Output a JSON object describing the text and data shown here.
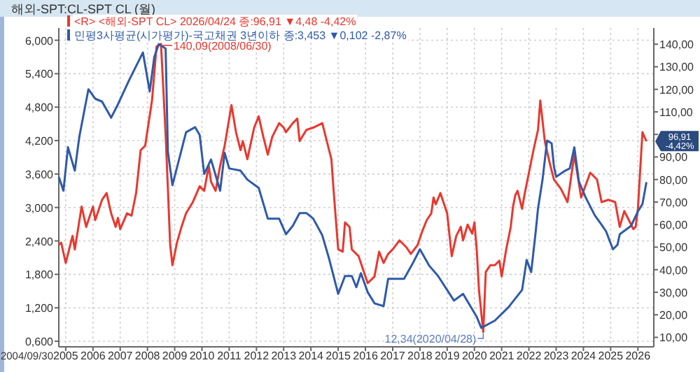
{
  "chart_data": {
    "type": "line",
    "title": "해외-SPT:CL-SPT CL (월)",
    "xlim": [
      "2004-09-30",
      "2026-08"
    ],
    "xticks": [
      {
        "value": "2005",
        "label": "2005"
      },
      {
        "value": "2006",
        "label": "2006"
      },
      {
        "value": "2007",
        "label": "2007"
      },
      {
        "value": "2008",
        "label": "2008"
      },
      {
        "value": "2009",
        "label": "2009"
      },
      {
        "value": "2010",
        "label": "2010"
      },
      {
        "value": "2011",
        "label": "2011"
      },
      {
        "value": "2012",
        "label": "2012"
      },
      {
        "value": "2013",
        "label": "2013"
      },
      {
        "value": "2014",
        "label": "2014"
      },
      {
        "value": "2015",
        "label": "2015"
      },
      {
        "value": "2016",
        "label": "2016"
      },
      {
        "value": "2017",
        "label": "2017"
      },
      {
        "value": "2018",
        "label": "2018"
      },
      {
        "value": "2019",
        "label": "2019"
      },
      {
        "value": "2020",
        "label": "2020"
      },
      {
        "value": "2021",
        "label": "2021"
      },
      {
        "value": "2022",
        "label": "2022"
      },
      {
        "value": "2023",
        "label": "2023"
      },
      {
        "value": "2024",
        "label": "2024"
      },
      {
        "value": "2025",
        "label": "2025"
      },
      {
        "value": "2026",
        "label": "2026"
      }
    ],
    "ylim": [
      0.5,
      6.22
    ],
    "yticks": [
      {
        "value": 0.6,
        "label": "0,600"
      },
      {
        "value": 1.2,
        "label": "1,200"
      },
      {
        "value": 1.8,
        "label": "1,800"
      },
      {
        "value": 2.4,
        "label": "2,400"
      },
      {
        "value": 3.0,
        "label": "3,000"
      },
      {
        "value": 3.6,
        "label": "3,600"
      },
      {
        "value": 4.2,
        "label": "4,200"
      },
      {
        "value": 4.8,
        "label": "4,800"
      },
      {
        "value": 5.4,
        "label": "5,400"
      },
      {
        "value": 6.0,
        "label": "6,000"
      }
    ],
    "y2lim": [
      5.8,
      147.2
    ],
    "y2ticks": [
      {
        "value": 10,
        "label": "10,00"
      },
      {
        "value": 20,
        "label": "20,00"
      },
      {
        "value": 30,
        "label": "30,00"
      },
      {
        "value": 40,
        "label": "40,00"
      },
      {
        "value": 50,
        "label": "50,00"
      },
      {
        "value": 60,
        "label": "60,00"
      },
      {
        "value": 70,
        "label": "70,00"
      },
      {
        "value": 80,
        "label": "80,00"
      },
      {
        "value": 90,
        "label": "90,00"
      },
      {
        "value": 100,
        "label": null
      },
      {
        "value": 110,
        "label": "110,00"
      },
      {
        "value": 120,
        "label": "120,00"
      },
      {
        "value": 130,
        "label": "130,00"
      },
      {
        "value": 140,
        "label": "140,00"
      }
    ],
    "grid": true,
    "legend": "top left",
    "series": [
      {
        "name": "<R> <해외-SPT CL> 2026/04/24 종:96,91  ▼4,48  -4,42%",
        "color": "#e8382f",
        "axis": "y2",
        "x": [
          "2004-09-30",
          "2004-11",
          "2005-01",
          "2005-04",
          "2005-05",
          "2005-08",
          "2005-10",
          "2006-01",
          "2006-02",
          "2006-05",
          "2006-07",
          "2006-09",
          "2006-11",
          "2006-12",
          "2007-01",
          "2007-04",
          "2007-06",
          "2007-08",
          "2007-10",
          "2007-12",
          "2008-03",
          "2008-05",
          "2008-06-30",
          "2008-08",
          "2008-09",
          "2008-10",
          "2008-11",
          "2008-12",
          "2009-02",
          "2009-04",
          "2009-06",
          "2009-09",
          "2009-12",
          "2010-02",
          "2010-04",
          "2010-05",
          "2010-07",
          "2010-09",
          "2010-11",
          "2011-02",
          "2011-04",
          "2011-06",
          "2011-07",
          "2011-09",
          "2011-12",
          "2012-02",
          "2012-04",
          "2012-06",
          "2012-08",
          "2012-11",
          "2013-01",
          "2013-02",
          "2013-05",
          "2013-07",
          "2013-08",
          "2013-11",
          "2014-02",
          "2014-06",
          "2014-08",
          "2014-10",
          "2014-11",
          "2015-01",
          "2015-03",
          "2015-04",
          "2015-06",
          "2015-07",
          "2015-10",
          "2015-12",
          "2016-02",
          "2016-05",
          "2016-07",
          "2016-09",
          "2016-11",
          "2017-01",
          "2017-04",
          "2017-07",
          "2017-09",
          "2017-12",
          "2018-02",
          "2018-04",
          "2018-06",
          "2018-07",
          "2018-08",
          "2018-10",
          "2018-11",
          "2019-01",
          "2019-03",
          "2019-05",
          "2019-07",
          "2019-08",
          "2019-10",
          "2019-12",
          "2020-01",
          "2020-02",
          "2020-03",
          "2020-04-28",
          "2020-06",
          "2020-08",
          "2020-10",
          "2020-12",
          "2021-01",
          "2021-03",
          "2021-05",
          "2021-06",
          "2021-07",
          "2021-08",
          "2021-10",
          "2021-11",
          "2022-01",
          "2022-03",
          "2022-05",
          "2022-06",
          "2022-08",
          "2022-10",
          "2022-12",
          "2023-03",
          "2023-06",
          "2023-09",
          "2023-12",
          "2024-04",
          "2024-07",
          "2024-09",
          "2024-12",
          "2025-03",
          "2025-05",
          "2025-07",
          "2025-09",
          "2025-11",
          "2025-12",
          "2026-01",
          "2026-03",
          "2026-04-24"
        ],
        "values": [
          51,
          52,
          43,
          55,
          49,
          68,
          59,
          68,
          62,
          71,
          74,
          65,
          59,
          63,
          58,
          65,
          64,
          74,
          93,
          95,
          115,
          139,
          140.09,
          120,
          100,
          76,
          51,
          42,
          52,
          59,
          65,
          70,
          77,
          75,
          86,
          79,
          75,
          86,
          95,
          113,
          101,
          93,
          97,
          89,
          103,
          108,
          99,
          91,
          99,
          105,
          103,
          101,
          105,
          107,
          97,
          102,
          103,
          105,
          97,
          89,
          75,
          49,
          48,
          61,
          59,
          49,
          46,
          40,
          34,
          37,
          48,
          43,
          47,
          49,
          53,
          50,
          47,
          51,
          57,
          62,
          65,
          72,
          69,
          74,
          71,
          65,
          46,
          55,
          59,
          53,
          60,
          56,
          61,
          49,
          31,
          12.34,
          39,
          42,
          42,
          44,
          37,
          49,
          59,
          68,
          73,
          75,
          67,
          73,
          83,
          93,
          102,
          115,
          97,
          88,
          80,
          76,
          70,
          91,
          72,
          83,
          80,
          70,
          71,
          70,
          59,
          66,
          62,
          58,
          59,
          67,
          101,
          96.91
        ]
      },
      {
        "name": "민평3사평균(시가평가)-국고채권 3년이하 종:3,453  ▼0,102  -2,87%",
        "color": "#2f5aa8",
        "x": [
          "2004-09-30",
          "2004-12",
          "2005-02",
          "2005-05",
          "2005-07",
          "2005-11",
          "2006-02",
          "2006-05",
          "2006-09",
          "2006-12",
          "2007-05",
          "2007-11",
          "2008-02",
          "2008-04",
          "2008-06",
          "2008-09",
          "2008-10",
          "2008-12",
          "2009-06",
          "2009-10",
          "2009-12",
          "2010-02",
          "2010-05",
          "2010-09",
          "2010-11",
          "2011-01",
          "2011-06",
          "2011-09",
          "2012-02",
          "2012-06",
          "2012-11",
          "2013-02",
          "2013-05",
          "2013-08",
          "2013-11",
          "2014-02",
          "2014-06",
          "2014-09",
          "2015-01",
          "2015-04",
          "2015-07",
          "2015-09",
          "2015-11",
          "2016-02",
          "2016-05",
          "2016-09",
          "2016-11",
          "2017-06",
          "2017-10",
          "2018-01",
          "2018-05",
          "2018-09",
          "2019-04",
          "2019-08",
          "2020-02",
          "2020-04",
          "2020-10",
          "2021-04",
          "2021-10",
          "2021-12",
          "2022-02",
          "2022-04",
          "2022-05",
          "2022-07",
          "2022-09",
          "2022-11",
          "2022-12",
          "2023-01",
          "2023-05",
          "2023-07",
          "2023-09",
          "2023-11",
          "2024-02",
          "2024-06",
          "2024-09",
          "2024-11",
          "2025-02",
          "2025-04",
          "2025-05",
          "2025-10",
          "2026-01",
          "2026-03",
          "2026-04-24"
        ],
        "values": [
          3.55,
          3.3,
          4.08,
          3.66,
          4.27,
          5.12,
          4.95,
          4.9,
          4.61,
          4.85,
          5.29,
          5.78,
          5.08,
          5.7,
          5.93,
          5.85,
          4.0,
          3.4,
          4.35,
          4.44,
          4.3,
          3.6,
          3.86,
          3.3,
          3.98,
          3.7,
          3.66,
          3.5,
          3.35,
          2.8,
          2.8,
          2.52,
          2.67,
          2.9,
          2.9,
          2.8,
          2.5,
          2.08,
          1.45,
          1.77,
          1.77,
          1.57,
          1.82,
          1.48,
          1.28,
          1.23,
          1.72,
          1.72,
          2.01,
          2.25,
          1.96,
          1.77,
          1.33,
          1.45,
          1.04,
          0.84,
          0.97,
          1.21,
          1.52,
          2.06,
          1.84,
          2.57,
          2.98,
          3.5,
          4.2,
          4.15,
          3.74,
          3.55,
          3.66,
          3.7,
          4.08,
          3.47,
          3.18,
          2.86,
          2.69,
          2.57,
          2.25,
          2.33,
          2.52,
          2.67,
          2.93,
          3.06,
          3.453
        ]
      }
    ],
    "annotations": [
      "140,09(2008/06/30)",
      "12,34(2020/04/28)",
      "96,91 -4,42%",
      "2004/09/30"
    ]
  }
}
